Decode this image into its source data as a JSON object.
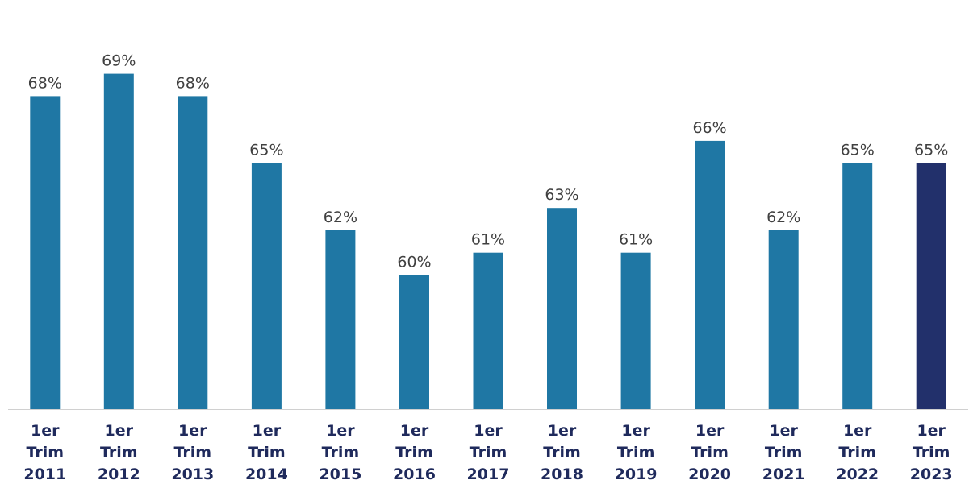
{
  "chart_data": {
    "type": "bar",
    "categories": [
      [
        "1er",
        "Trim",
        "2011"
      ],
      [
        "1er",
        "Trim",
        "2012"
      ],
      [
        "1er",
        "Trim",
        "2013"
      ],
      [
        "1er",
        "Trim",
        "2014"
      ],
      [
        "1er",
        "Trim",
        "2015"
      ],
      [
        "1er",
        "Trim",
        "2016"
      ],
      [
        "1er",
        "Trim",
        "2017"
      ],
      [
        "1er",
        "Trim",
        "2018"
      ],
      [
        "1er",
        "Trim",
        "2019"
      ],
      [
        "1er",
        "Trim",
        "2020"
      ],
      [
        "1er",
        "Trim",
        "2021"
      ],
      [
        "1er",
        "Trim",
        "2022"
      ],
      [
        "1er",
        "Trim",
        "2023"
      ]
    ],
    "values": [
      68.0,
      69.0,
      68.0,
      65.0,
      62.0,
      60.0,
      61.0,
      63.0,
      61.0,
      66.0,
      62.0,
      65.0,
      65.0
    ],
    "labels": [
      "68%",
      "69%",
      "68%",
      "65%",
      "62%",
      "60%",
      "61%",
      "63%",
      "61%",
      "66%",
      "62%",
      "65%",
      "65%"
    ],
    "ylim": [
      54.0,
      70.5
    ],
    "grid": false,
    "legend": "none",
    "colors": {
      "bar": "#1f77a4",
      "highlight": "#22306b",
      "axis": "#d0d0d0",
      "value_text": "#404040",
      "category_text": "#1f2a5c"
    },
    "highlight_index": 12
  }
}
